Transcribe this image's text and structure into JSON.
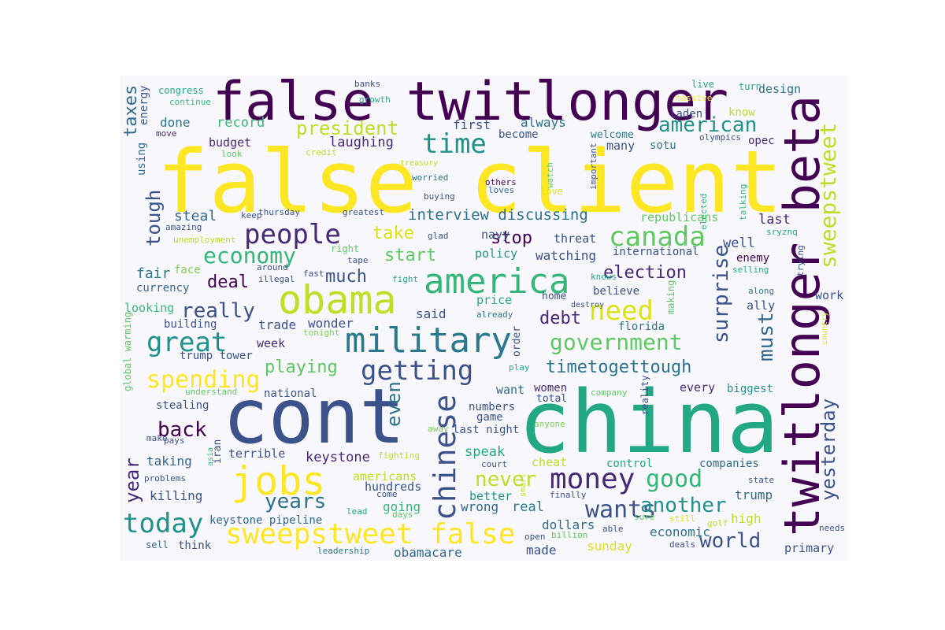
{
  "cloud": {
    "background": "#f8f8fc",
    "colormap": [
      "#440154",
      "#3b528b",
      "#21918c",
      "#5ec962",
      "#fde725"
    ],
    "words": [
      {
        "text": "false twitlonger",
        "color": "#440154"
      },
      {
        "text": "false client",
        "color": "#fde725"
      },
      {
        "text": "twitlonger beta",
        "color": "#440154"
      },
      {
        "text": "cont",
        "color": "#3b528b"
      },
      {
        "text": "china",
        "color": "#22a884"
      },
      {
        "text": "obama",
        "color": "#bddf26"
      },
      {
        "text": "america",
        "color": "#35b779"
      },
      {
        "text": "military",
        "color": "#2a788e"
      },
      {
        "text": "jobs",
        "color": "#fde725"
      },
      {
        "text": "sweepstweet false",
        "color": "#fde725"
      },
      {
        "text": "today",
        "color": "#21918c"
      },
      {
        "text": "money",
        "color": "#482878"
      },
      {
        "text": "chinese",
        "color": "#3b528b"
      },
      {
        "text": "people",
        "color": "#482878"
      },
      {
        "text": "great",
        "color": "#21918c"
      },
      {
        "text": "canada",
        "color": "#5ec962"
      },
      {
        "text": "time",
        "color": "#21918c"
      },
      {
        "text": "getting",
        "color": "#3b528b"
      },
      {
        "text": "need",
        "color": "#dde318"
      },
      {
        "text": "economy",
        "color": "#35b779"
      },
      {
        "text": "government",
        "color": "#5ec962"
      },
      {
        "text": "spending",
        "color": "#fde725"
      },
      {
        "text": "wants",
        "color": "#3b528b"
      },
      {
        "text": "good",
        "color": "#35b779"
      },
      {
        "text": "world",
        "color": "#3b528b"
      },
      {
        "text": "another",
        "color": "#21918c"
      },
      {
        "text": "years",
        "color": "#2c728e"
      },
      {
        "text": "never",
        "color": "#bddf26"
      },
      {
        "text": "back",
        "color": "#440154"
      },
      {
        "text": "really",
        "color": "#3b528b"
      },
      {
        "text": "sweepstweet",
        "color": "#bddf26"
      },
      {
        "text": "yesterday",
        "color": "#3b528b"
      },
      {
        "text": "must",
        "color": "#31688e"
      },
      {
        "text": "surprise",
        "color": "#3b528b"
      },
      {
        "text": "american",
        "color": "#21918c"
      },
      {
        "text": "president",
        "color": "#bddf26"
      },
      {
        "text": "timetogettough",
        "color": "#2c728e"
      },
      {
        "text": "election",
        "color": "#482878"
      },
      {
        "text": "even",
        "color": "#2c728e"
      },
      {
        "text": "year",
        "color": "#482878"
      },
      {
        "text": "tough",
        "color": "#3b528b"
      },
      {
        "text": "taxes",
        "color": "#31688e"
      },
      {
        "text": "playing",
        "color": "#5ec962"
      },
      {
        "text": "much",
        "color": "#3b528b"
      },
      {
        "text": "take",
        "color": "#dde318"
      },
      {
        "text": "start",
        "color": "#5ec962"
      },
      {
        "text": "stop",
        "color": "#440154"
      },
      {
        "text": "interview discussing",
        "color": "#2c728e"
      },
      {
        "text": "debt",
        "color": "#482878"
      },
      {
        "text": "deal",
        "color": "#440154"
      },
      {
        "text": "fair",
        "color": "#2a788e"
      },
      {
        "text": "steal",
        "color": "#31688e"
      },
      {
        "text": "laughing",
        "color": "#482878"
      },
      {
        "text": "record",
        "color": "#3aba76"
      },
      {
        "text": "done",
        "color": "#2c728e"
      },
      {
        "text": "first",
        "color": "#3b528b"
      },
      {
        "text": "always",
        "color": "#2c728e"
      },
      {
        "text": "budget",
        "color": "#482878"
      },
      {
        "text": "republicans",
        "color": "#5ec962"
      },
      {
        "text": "last",
        "color": "#482878"
      },
      {
        "text": "well",
        "color": "#3b528b"
      },
      {
        "text": "keystone pipeline",
        "color": "#31688e"
      },
      {
        "text": "keystone",
        "color": "#482878"
      },
      {
        "text": "speak",
        "color": "#22a884"
      },
      {
        "text": "trump",
        "color": "#31688e"
      },
      {
        "text": "high",
        "color": "#bddf26"
      },
      {
        "text": "economic",
        "color": "#2c728e"
      },
      {
        "text": "dollars",
        "color": "#31688e"
      },
      {
        "text": "made",
        "color": "#3b528b"
      },
      {
        "text": "obamacare",
        "color": "#31688e"
      },
      {
        "text": "sunday",
        "color": "#dde318"
      },
      {
        "text": "primary",
        "color": "#3b528b"
      },
      {
        "text": "real",
        "color": "#2a788e"
      },
      {
        "text": "going",
        "color": "#35b779"
      },
      {
        "text": "wrong",
        "color": "#31688e"
      },
      {
        "text": "better",
        "color": "#21918c"
      },
      {
        "text": "hundreds",
        "color": "#3b528b"
      },
      {
        "text": "americans",
        "color": "#bddf26"
      },
      {
        "text": "killing",
        "color": "#3b528b"
      },
      {
        "text": "taking",
        "color": "#31688e"
      },
      {
        "text": "terrible",
        "color": "#3b528b"
      },
      {
        "text": "trade",
        "color": "#3b528b"
      },
      {
        "text": "wonder",
        "color": "#3b528b"
      },
      {
        "text": "said",
        "color": "#3b528b"
      },
      {
        "text": "week",
        "color": "#482878"
      },
      {
        "text": "florida",
        "color": "#2a788e"
      },
      {
        "text": "believe",
        "color": "#3b528b"
      },
      {
        "text": "ally",
        "color": "#3b528b"
      },
      {
        "text": "work",
        "color": "#3b528b"
      },
      {
        "text": "enemy",
        "color": "#440154"
      },
      {
        "text": "international",
        "color": "#3b528b"
      },
      {
        "text": "watching",
        "color": "#3b528b"
      },
      {
        "text": "policy",
        "color": "#21918c"
      },
      {
        "text": "threat",
        "color": "#3b528b"
      },
      {
        "text": "navy",
        "color": "#3b528b"
      },
      {
        "text": "price",
        "color": "#22a884"
      },
      {
        "text": "home",
        "color": "#3b528b"
      },
      {
        "text": "want",
        "color": "#31688e"
      },
      {
        "text": "women",
        "color": "#482878"
      },
      {
        "text": "every",
        "color": "#482878"
      },
      {
        "text": "biggest",
        "color": "#21918c"
      },
      {
        "text": "total",
        "color": "#3b528b"
      },
      {
        "text": "numbers",
        "color": "#3b528b"
      },
      {
        "text": "game",
        "color": "#3b528b"
      },
      {
        "text": "last night",
        "color": "#3b528b"
      },
      {
        "text": "companies",
        "color": "#31688e"
      },
      {
        "text": "control",
        "color": "#22a884"
      },
      {
        "text": "cheat",
        "color": "#bddf26"
      },
      {
        "text": "looking",
        "color": "#35b779"
      },
      {
        "text": "currency",
        "color": "#31688e"
      },
      {
        "text": "building",
        "color": "#3b528b"
      },
      {
        "text": "trump tower",
        "color": "#3b528b"
      },
      {
        "text": "stealing",
        "color": "#3b528b"
      },
      {
        "text": "national",
        "color": "#3b528b"
      },
      {
        "text": "face",
        "color": "#7ad151"
      },
      {
        "text": "sotu",
        "color": "#2a788e"
      },
      {
        "text": "many",
        "color": "#3b528b"
      },
      {
        "text": "welcome",
        "color": "#2a788e"
      },
      {
        "text": "become",
        "color": "#3b528b"
      },
      {
        "text": "laden",
        "color": "#3b528b"
      },
      {
        "text": "know",
        "color": "#bddf26"
      },
      {
        "text": "design",
        "color": "#2c728e"
      },
      {
        "text": "opec",
        "color": "#482878"
      },
      {
        "text": "using",
        "color": "#31688e"
      },
      {
        "text": "energy",
        "color": "#3b528b"
      },
      {
        "text": "congress",
        "color": "#22a884"
      },
      {
        "text": "continue",
        "color": "#35b779"
      },
      {
        "text": "banks",
        "color": "#3b528b"
      },
      {
        "text": "growth",
        "color": "#22a884"
      },
      {
        "text": "live",
        "color": "#22a884"
      },
      {
        "text": "turn",
        "color": "#22a884"
      },
      {
        "text": "massive",
        "color": "#fde725"
      },
      {
        "text": "move",
        "color": "#482878"
      },
      {
        "text": "look",
        "color": "#5ec962"
      },
      {
        "text": "credit",
        "color": "#bddf26"
      },
      {
        "text": "treasury",
        "color": "#bddf26"
      },
      {
        "text": "worried",
        "color": "#2c728e"
      },
      {
        "text": "buying",
        "color": "#3b528b"
      },
      {
        "text": "others",
        "color": "#440154"
      },
      {
        "text": "loves",
        "color": "#2c728e"
      },
      {
        "text": "love",
        "color": "#dde318"
      },
      {
        "text": "watch",
        "color": "#5ec962"
      },
      {
        "text": "important",
        "color": "#3b528b"
      },
      {
        "text": "olympics",
        "color": "#3b528b"
      },
      {
        "text": "elected",
        "color": "#35b779"
      },
      {
        "text": "talking",
        "color": "#35b779"
      },
      {
        "text": "sryznq",
        "color": "#22a884"
      },
      {
        "text": "keep",
        "color": "#3b528b"
      },
      {
        "text": "thursday",
        "color": "#3b528b"
      },
      {
        "text": "greatest",
        "color": "#3b528b"
      },
      {
        "text": "amazing",
        "color": "#3b528b"
      },
      {
        "text": "unemployment",
        "color": "#bddf26"
      },
      {
        "text": "glad",
        "color": "#3b528b"
      },
      {
        "text": "right",
        "color": "#5ec962"
      },
      {
        "text": "tape",
        "color": "#3b528b"
      },
      {
        "text": "around",
        "color": "#3b528b"
      },
      {
        "text": "illegal",
        "color": "#3b528b"
      },
      {
        "text": "fast",
        "color": "#3b528b"
      },
      {
        "text": "fight",
        "color": "#22a884"
      },
      {
        "text": "knows",
        "color": "#22a884"
      },
      {
        "text": "selling",
        "color": "#22a884"
      },
      {
        "text": "along",
        "color": "#2a788e"
      },
      {
        "text": "trying",
        "color": "#3b528b"
      },
      {
        "text": "making",
        "color": "#5ec962"
      },
      {
        "text": "destroy",
        "color": "#3b528b"
      },
      {
        "text": "already",
        "color": "#2a788e"
      },
      {
        "text": "tonight",
        "color": "#7ad151"
      },
      {
        "text": "global warming",
        "color": "#5ec962"
      },
      {
        "text": "understand",
        "color": "#5ec962"
      },
      {
        "text": "country",
        "color": "#dde318"
      },
      {
        "text": "play",
        "color": "#22a884"
      },
      {
        "text": "order",
        "color": "#3b528b"
      },
      {
        "text": "reality",
        "color": "#3b528b"
      },
      {
        "text": "company",
        "color": "#5ec962"
      },
      {
        "text": "anyone",
        "color": "#7ad151"
      },
      {
        "text": "away",
        "color": "#7ad151"
      },
      {
        "text": "make",
        "color": "#3b528b"
      },
      {
        "text": "pays",
        "color": "#3b528b"
      },
      {
        "text": "asia",
        "color": "#35b779"
      },
      {
        "text": "iran",
        "color": "#3b528b"
      },
      {
        "text": "fighting",
        "color": "#bddf26"
      },
      {
        "text": "court",
        "color": "#3b528b"
      },
      {
        "text": "problems",
        "color": "#3b528b"
      },
      {
        "text": "come",
        "color": "#3b528b"
      },
      {
        "text": "smart",
        "color": "#bddf26"
      },
      {
        "text": "finally",
        "color": "#3b528b"
      },
      {
        "text": "state",
        "color": "#3b528b"
      },
      {
        "text": "lead",
        "color": "#22a884"
      },
      {
        "text": "days",
        "color": "#5ec962"
      },
      {
        "text": "sure",
        "color": "#5ec962"
      },
      {
        "text": "still",
        "color": "#dde318"
      },
      {
        "text": "golf",
        "color": "#bddf26"
      },
      {
        "text": "needs",
        "color": "#3b528b"
      },
      {
        "text": "able",
        "color": "#3b528b"
      },
      {
        "text": "deals",
        "color": "#3b528b"
      },
      {
        "text": "open",
        "color": "#3b528b"
      },
      {
        "text": "billion",
        "color": "#5ec962"
      },
      {
        "text": "sell",
        "color": "#31688e"
      },
      {
        "text": "think",
        "color": "#3b528b"
      },
      {
        "text": "leadership",
        "color": "#2a788e"
      }
    ]
  }
}
